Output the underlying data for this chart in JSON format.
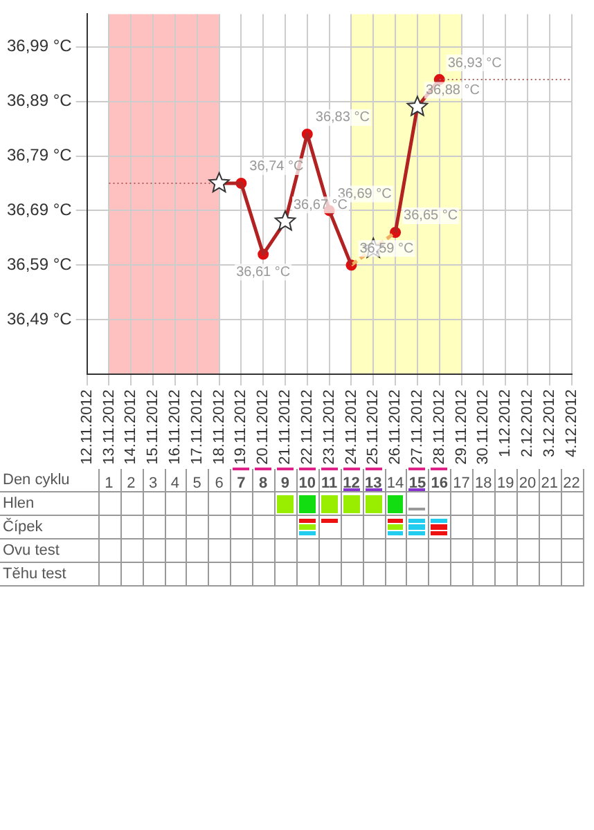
{
  "chart_data": {
    "type": "line",
    "categories": [
      "12.11.2012",
      "13.11.2012",
      "14.11.2012",
      "15.11.2012",
      "16.11.2012",
      "17.11.2012",
      "18.11.2012",
      "19.11.2012",
      "20.11.2012",
      "21.11.2012",
      "22.11.2012",
      "23.11.2012",
      "24.11.2012",
      "25.11.2012",
      "26.11.2012",
      "27.11.2012",
      "28.11.2012",
      "29.11.2012",
      "30.11.2012",
      "1.12.2012",
      "2.12.2012",
      "3.12.2012",
      "4.12.2012"
    ],
    "series": [
      {
        "type": "line",
        "color": "#b06060",
        "line_style": "dotted",
        "values": [
          null,
          36.74,
          36.74,
          36.74,
          36.74,
          36.74,
          36.74,
          null,
          null,
          null,
          null,
          null,
          null,
          null,
          null,
          null,
          36.93,
          36.93,
          36.93,
          36.93,
          36.93,
          36.93,
          36.93
        ]
      },
      {
        "type": "line",
        "color": "#b22222",
        "line_style": "solid",
        "values": [
          null,
          null,
          null,
          null,
          null,
          null,
          36.74,
          36.74,
          36.61,
          36.67,
          36.83,
          36.69,
          36.59,
          null,
          36.65,
          36.88,
          36.93,
          null,
          null,
          null,
          null,
          null,
          null
        ]
      },
      {
        "type": "line",
        "color": "#f0b060",
        "line_style": "dashed",
        "values": [
          null,
          null,
          null,
          null,
          null,
          null,
          null,
          null,
          null,
          null,
          null,
          null,
          36.59,
          36.62,
          36.65,
          null,
          null,
          null,
          null,
          null,
          null,
          null,
          null
        ]
      },
      {
        "type": "scatter",
        "color": "#dd1111",
        "marker": "circle",
        "values": [
          null,
          null,
          null,
          null,
          null,
          null,
          null,
          36.74,
          36.61,
          null,
          36.83,
          36.69,
          36.59,
          null,
          36.65,
          null,
          36.93,
          null,
          null,
          null,
          null,
          null,
          null
        ],
        "value_labels": [
          null,
          null,
          null,
          null,
          null,
          null,
          null,
          "36,74 °C",
          "36,61 °C",
          null,
          "36,83 °C",
          "36,69 °C",
          "36,59 °C",
          null,
          "36,65 °C",
          null,
          "36,93 °C",
          null,
          null,
          null,
          null,
          null,
          null
        ]
      },
      {
        "type": "scatter",
        "color": "#ffffff",
        "marker": "star",
        "values": [
          null,
          null,
          null,
          null,
          null,
          null,
          36.74,
          null,
          null,
          36.67,
          null,
          null,
          null,
          36.62,
          null,
          36.88,
          null,
          null,
          null,
          null,
          null,
          null,
          null
        ],
        "value_labels": [
          null,
          null,
          null,
          null,
          null,
          null,
          null,
          null,
          null,
          "36,67 °C",
          null,
          null,
          null,
          null,
          null,
          "36,88 °C",
          null,
          null,
          null,
          null,
          null,
          null,
          null
        ]
      }
    ],
    "ylim": [
      36.39,
      37.05
    ],
    "yticks": [
      {
        "value": 36.49,
        "label": "36,49 °C"
      },
      {
        "value": 36.59,
        "label": "36,59 °C"
      },
      {
        "value": 36.69,
        "label": "36,69 °C"
      },
      {
        "value": 36.79,
        "label": "36,79 °C"
      },
      {
        "value": 36.89,
        "label": "36,89 °C"
      },
      {
        "value": 36.99,
        "label": "36,99 °C"
      }
    ],
    "x2label": "Den cyklu",
    "x2lim": [
      0,
      22
    ],
    "x2ticks": [
      1,
      2,
      3,
      4,
      5,
      6,
      7,
      8,
      9,
      10,
      11,
      12,
      13,
      14,
      15,
      16,
      17,
      18,
      19,
      20,
      21,
      22
    ],
    "bands": [
      {
        "axis": "x",
        "from": "13.11.2012",
        "to": "18.11.2012",
        "color": "#ffc0c0"
      },
      {
        "axis": "x",
        "from": "24.11.2012",
        "to": "29.11.2012",
        "color": "#ffffc0"
      }
    ],
    "annotations": [
      "Hlen",
      "Čípek",
      "Ovu test",
      "Těhu test"
    ],
    "grid": true
  }
}
